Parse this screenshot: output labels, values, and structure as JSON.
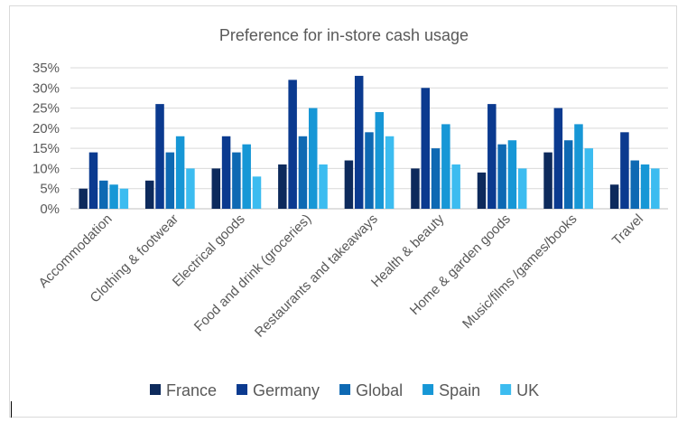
{
  "chart_data": {
    "type": "bar",
    "title": "Preference for in-store cash usage",
    "xlabel": "",
    "ylabel": "",
    "ylim": [
      0,
      35
    ],
    "ytick_labels": [
      "0%",
      "5%",
      "10%",
      "15%",
      "20%",
      "25%",
      "30%",
      "35%"
    ],
    "grid": true,
    "legend_position": "bottom",
    "categories": [
      "Accommodation",
      "Clothing & footwear",
      "Electrical goods",
      "Food and drink (groceries)",
      "Restaurants and takeaways",
      "Health & beauty",
      "Home & garden goods",
      "Music/films /games/books",
      "Travel"
    ],
    "series": [
      {
        "name": "France",
        "color": "#0d2a5c",
        "values": [
          5,
          7,
          10,
          11,
          12,
          10,
          9,
          14,
          6
        ]
      },
      {
        "name": "Germany",
        "color": "#0b3a8f",
        "values": [
          14,
          26,
          18,
          32,
          33,
          30,
          26,
          25,
          19
        ]
      },
      {
        "name": "Global",
        "color": "#0e69b3",
        "values": [
          7,
          14,
          14,
          18,
          19,
          15,
          16,
          17,
          12
        ]
      },
      {
        "name": "Spain",
        "color": "#1797d6",
        "values": [
          6,
          18,
          16,
          25,
          24,
          21,
          17,
          21,
          11
        ]
      },
      {
        "name": "UK",
        "color": "#3cbcf0",
        "values": [
          5,
          10,
          8,
          11,
          18,
          11,
          10,
          15,
          10
        ]
      }
    ]
  }
}
